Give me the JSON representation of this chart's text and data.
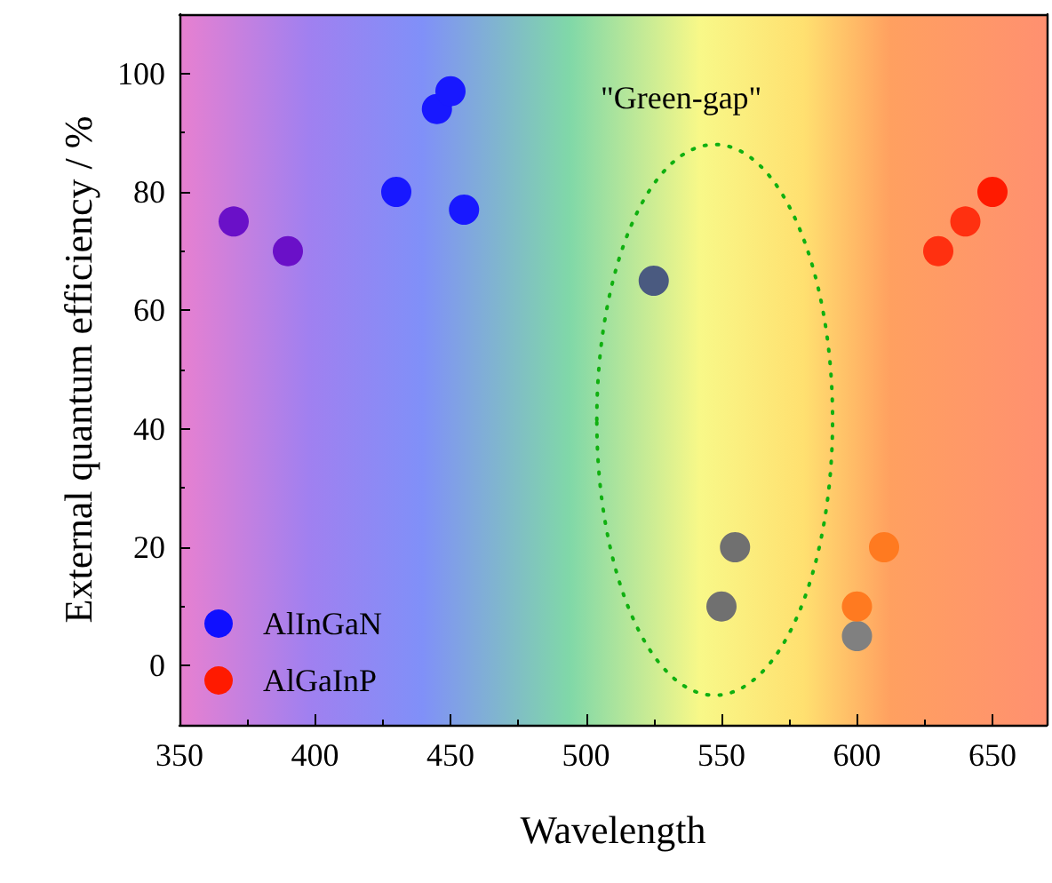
{
  "chart_data": {
    "type": "scatter",
    "xlabel": "Wavelength",
    "ylabel": "External quantum efficiency / %",
    "xlim": [
      350,
      670
    ],
    "xticks": [
      350,
      400,
      450,
      500,
      550,
      600,
      650
    ],
    "ylim": [
      -10,
      110
    ],
    "yticks": [
      0,
      20,
      40,
      60,
      80,
      100
    ],
    "grid": false,
    "legend": "bottom left",
    "marker": "circle",
    "annotations": [
      "\"Green-gap\""
    ],
    "series": [
      {
        "name": "AlInGaN",
        "color": "#1010ff",
        "x": [
          370,
          390,
          430,
          445,
          450,
          455,
          525,
          550,
          555
        ],
        "values": [
          75,
          70,
          80,
          94,
          97,
          77,
          65,
          10,
          20
        ],
        "colors": [
          "#6a10c8",
          "#6a10c8",
          "#1818ff",
          "#1818ff",
          "#1818ff",
          "#1818ff",
          "#4a5a80",
          "#707070",
          "#707070"
        ]
      },
      {
        "name": "AlGaInP",
        "color": "#ff1a00",
        "x": [
          600,
          600,
          610,
          630,
          640,
          650
        ],
        "values": [
          5,
          10,
          20,
          70,
          75,
          80
        ],
        "colors": [
          "#808080",
          "#ff7a20",
          "#ff7a20",
          "#ff3010",
          "#ff3010",
          "#ff1a00"
        ]
      }
    ]
  }
}
